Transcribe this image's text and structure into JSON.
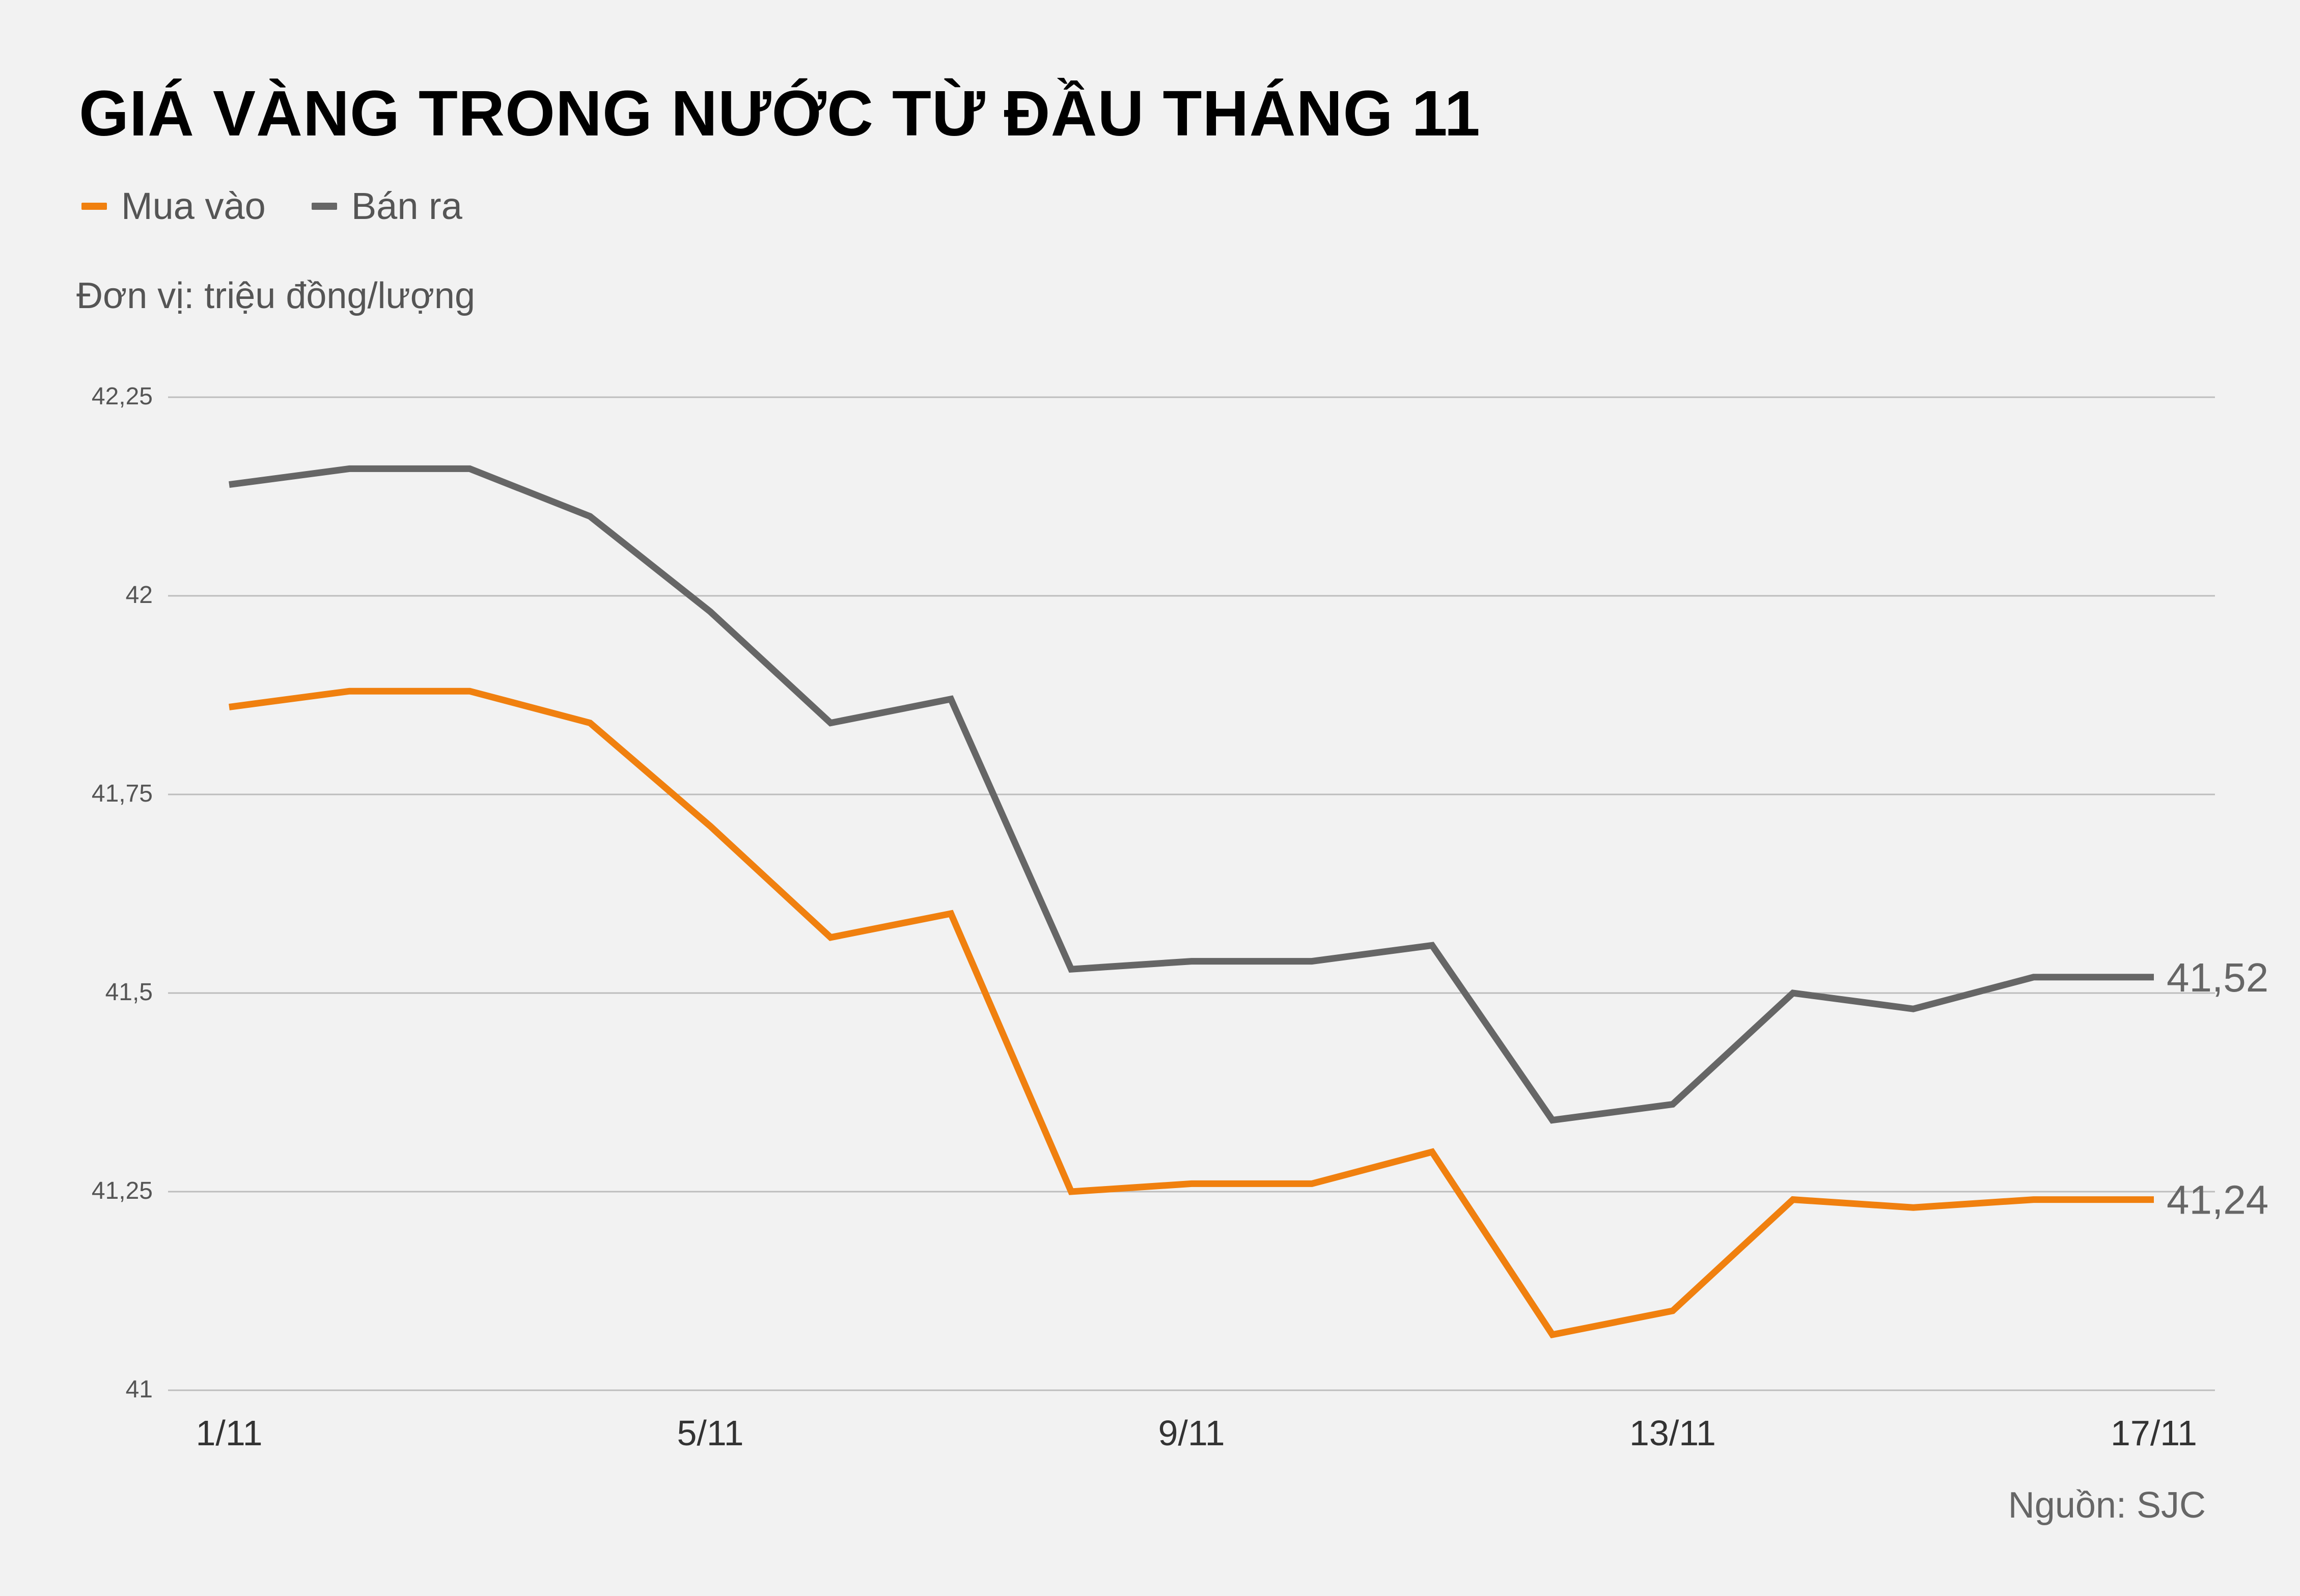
{
  "title": "GIÁ VÀNG TRONG NƯỚC TỪ ĐẦU THÁNG 11",
  "unit_label": "Đơn vị: triệu đồng/lượng",
  "source": "Nguồn: SJC",
  "colors": {
    "buy": "#f0800f",
    "sell": "#666666",
    "grid": "#bdbdbd",
    "background": "#f2f2f2"
  },
  "chart_data": {
    "type": "line",
    "title": "GIÁ VÀNG TRONG NƯỚC TỪ ĐẦU THÁNG 11",
    "xlabel": "",
    "ylabel": "Đơn vị: triệu đồng/lượng",
    "ylim": [
      41,
      42.25
    ],
    "yticks": [
      {
        "value": 41,
        "label": "41"
      },
      {
        "value": 41.25,
        "label": "41,25"
      },
      {
        "value": 41.5,
        "label": "41,5"
      },
      {
        "value": 41.75,
        "label": "41,75"
      },
      {
        "value": 42,
        "label": "42"
      },
      {
        "value": 42.25,
        "label": "42,25"
      }
    ],
    "x": [
      "1/11",
      "2/11",
      "3/11",
      "4/11",
      "5/11",
      "6/11",
      "7/11",
      "8/11",
      "9/11",
      "10/11",
      "11/11",
      "12/11",
      "13/11",
      "14/11",
      "15/11",
      "16/11",
      "17/11"
    ],
    "xtick_labels": [
      "1/11",
      "5/11",
      "9/11",
      "13/11",
      "17/11"
    ],
    "grid": true,
    "legend_position": "top-left",
    "series": [
      {
        "name": "Mua vào",
        "color": "#f0800f",
        "values": [
          41.86,
          41.88,
          41.88,
          41.84,
          41.71,
          41.57,
          41.6,
          41.25,
          41.26,
          41.26,
          41.3,
          41.07,
          41.1,
          41.24,
          41.23,
          41.24,
          41.24
        ],
        "end_label": "41,24"
      },
      {
        "name": "Bán ra",
        "color": "#666666",
        "values": [
          42.14,
          42.16,
          42.16,
          42.1,
          41.98,
          41.84,
          41.87,
          41.53,
          41.54,
          41.54,
          41.56,
          41.34,
          41.36,
          41.5,
          41.48,
          41.52,
          41.52
        ],
        "end_label": "41,52"
      }
    ]
  }
}
